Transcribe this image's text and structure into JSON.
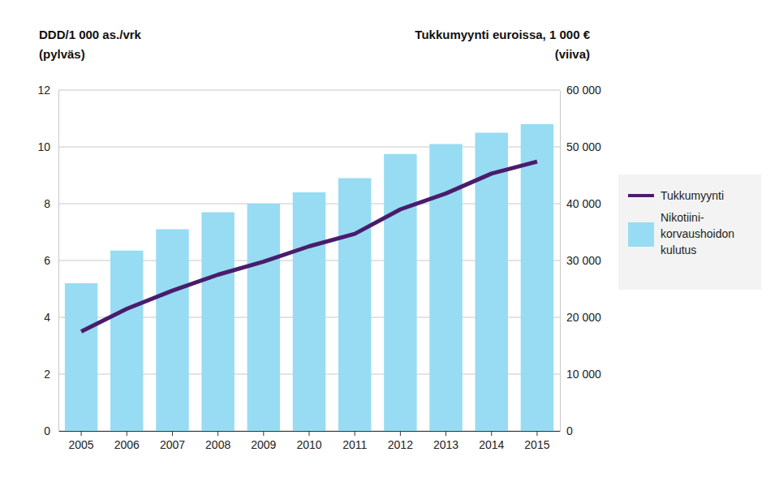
{
  "chart_data": {
    "type": "bar",
    "ylabel": [
      "DDD/1 000 as./vrk",
      "(pylväs)"
    ],
    "y2label": [
      "Tukkumyynti euroissa, 1 000 €",
      "(viiva)"
    ],
    "categories": [
      "2005",
      "2006",
      "2007",
      "2008",
      "2009",
      "2010",
      "2011",
      "2012",
      "2013",
      "2014",
      "2015"
    ],
    "series": [
      {
        "name": "Tukkumyynti",
        "type": "line",
        "axis": "y2",
        "color": "#4a1c6c",
        "values": [
          17500,
          21500,
          24700,
          27500,
          29800,
          32500,
          34700,
          39000,
          41800,
          45300,
          47400
        ]
      },
      {
        "name": "Nikotiini-korvaushoidon kulutus",
        "type": "bar",
        "color": "#97dcf2",
        "values": [
          5.2,
          6.35,
          7.1,
          7.7,
          8.0,
          8.4,
          8.9,
          9.75,
          10.1,
          10.5,
          10.8
        ]
      }
    ],
    "ylim": [
      0,
      12
    ],
    "yticks": [
      0,
      2,
      4,
      6,
      8,
      10,
      12
    ],
    "y2lim": [
      0,
      60000
    ],
    "y2ticks": [
      0,
      {
        "value": 10000,
        "label": "10 000"
      },
      {
        "value": 20000,
        "label": "20 000"
      },
      {
        "value": 30000,
        "label": "30 000"
      },
      {
        "value": 40000,
        "label": "40 000"
      },
      {
        "value": 50000,
        "label": "50 000"
      },
      {
        "value": 60000,
        "label": "60 000"
      }
    ],
    "grid": true,
    "legend": "right"
  }
}
